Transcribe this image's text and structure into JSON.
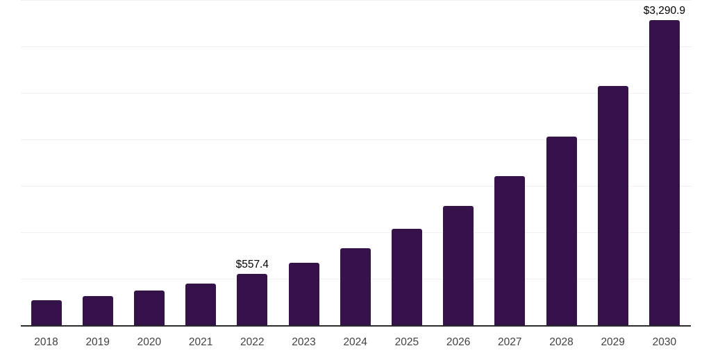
{
  "chart_data": {
    "type": "bar",
    "title": "",
    "xlabel": "",
    "ylabel": "",
    "categories": [
      "2018",
      "2019",
      "2020",
      "2021",
      "2022",
      "2023",
      "2024",
      "2025",
      "2026",
      "2027",
      "2028",
      "2029",
      "2030"
    ],
    "values": [
      275,
      320,
      380,
      455,
      557.4,
      675,
      830,
      1040,
      1290,
      1610,
      2030,
      2580,
      3290.9
    ],
    "data_labels": [
      {
        "category_index": 4,
        "text": "$557.4"
      },
      {
        "category_index": 12,
        "text": "$3,290.9"
      }
    ],
    "ylim": [
      0,
      3500
    ],
    "gridline_interval": 500,
    "grid": true,
    "legend": false,
    "y_tick_labels_shown": false,
    "colors": {
      "bar": "#36124a",
      "axis_line": "#2a2a2a",
      "gridline": "#f1f1f1",
      "tick_label": "#414141",
      "data_label": "#000000",
      "background": "#ffffff"
    }
  }
}
